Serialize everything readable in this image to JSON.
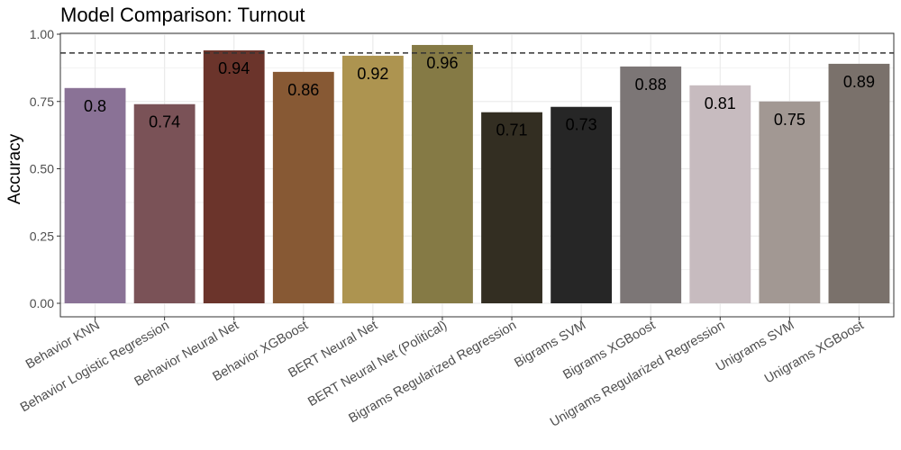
{
  "chart_data": {
    "type": "bar",
    "title": "Model Comparison: Turnout",
    "xlabel": "",
    "ylabel": "Accuracy",
    "ylim": [
      0,
      1.0
    ],
    "yticks": [
      "0.00",
      "0.25",
      "0.50",
      "0.75",
      "1.00"
    ],
    "ytick_values": [
      0,
      0.25,
      0.5,
      0.75,
      1.0
    ],
    "reference_line": 0.93,
    "grid": true,
    "categories": [
      "Behavior KNN",
      "Behavior Logistic Regression",
      "Behavior Neural Net",
      "Behavior XGBoost",
      "BERT Neural Net",
      "BERT Neural Net (Political)",
      "Bigrams Regularized Regression",
      "Bigrams SVM",
      "Bigrams XGBoost",
      "Unigrams Regularized Regression",
      "Unigrams SVM",
      "Unigrams XGBoost"
    ],
    "values": [
      0.8,
      0.74,
      0.94,
      0.86,
      0.92,
      0.96,
      0.71,
      0.73,
      0.88,
      0.81,
      0.75,
      0.89
    ],
    "value_labels": [
      "0.8",
      "0.74",
      "0.94",
      "0.86",
      "0.92",
      "0.96",
      "0.71",
      "0.73",
      "0.88",
      "0.81",
      "0.75",
      "0.89"
    ],
    "colors": [
      "#8a7296",
      "#7a5257",
      "#6b342b",
      "#875934",
      "#ad9450",
      "#857a45",
      "#332e22",
      "#262626",
      "#7c7676",
      "#c7bbbf",
      "#a29893",
      "#7a716b"
    ]
  }
}
